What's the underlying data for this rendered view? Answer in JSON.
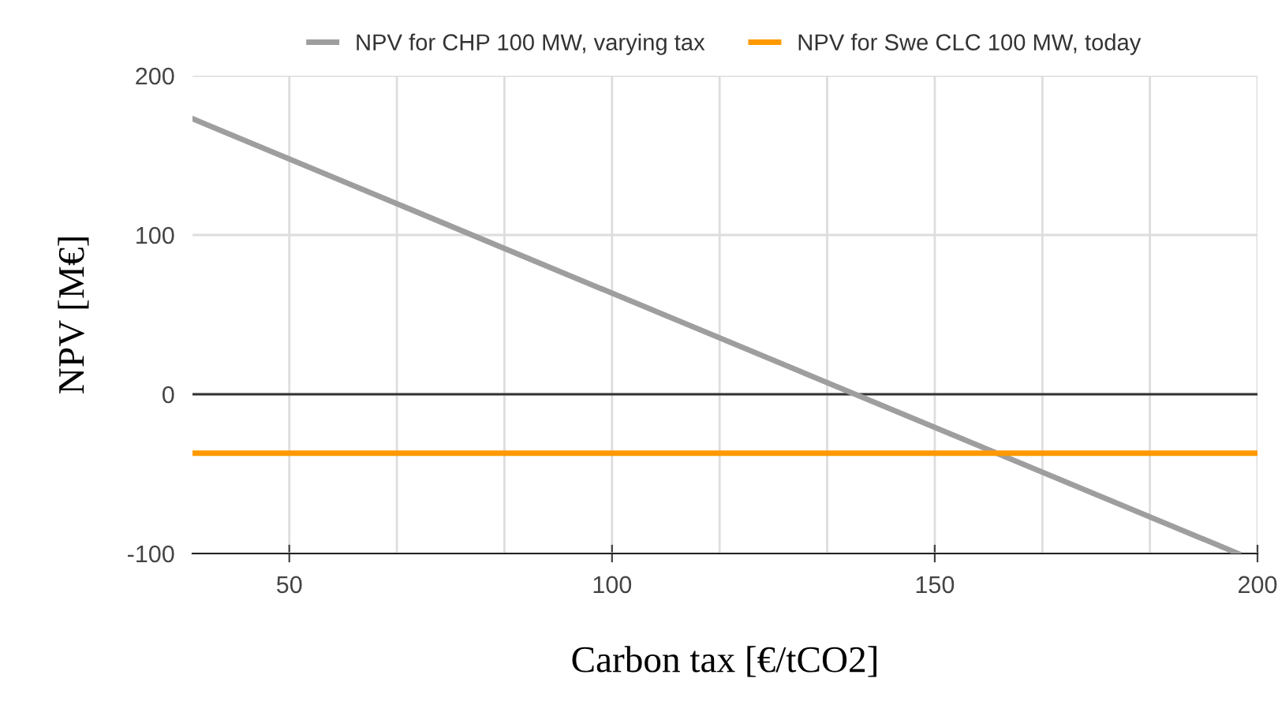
{
  "chart_data": {
    "type": "line",
    "xlabel": "Carbon tax [€/tCO2]",
    "ylabel": "NPV [M€]",
    "series": [
      {
        "name": "NPV for CHP 100 MW, varying tax",
        "color": "#9e9e9e",
        "x": [
          35,
          197
        ],
        "values": [
          173,
          -100
        ]
      },
      {
        "name": "NPV for Swe CLC 100 MW, today",
        "color": "#ff9900",
        "x": [
          35,
          200
        ],
        "values": [
          -37,
          -37
        ]
      }
    ],
    "xlim": [
      35,
      200
    ],
    "ylim": [
      -100,
      200
    ],
    "xticks": [
      50,
      {
        "value": 66.67,
        "label": null
      },
      {
        "value": 83.33,
        "label": null
      },
      100,
      {
        "value": 116.67,
        "label": null
      },
      {
        "value": 133.33,
        "label": null
      },
      150,
      {
        "value": 166.67,
        "label": null
      },
      {
        "value": 183.33,
        "label": null
      },
      200
    ],
    "yticks": [
      -100,
      0,
      100,
      200
    ],
    "ref_lines": [
      {
        "axis": "y",
        "value": 0,
        "color": "#333333"
      }
    ],
    "grid": true,
    "legend": "top",
    "marker": "none",
    "line_style": "solid"
  }
}
